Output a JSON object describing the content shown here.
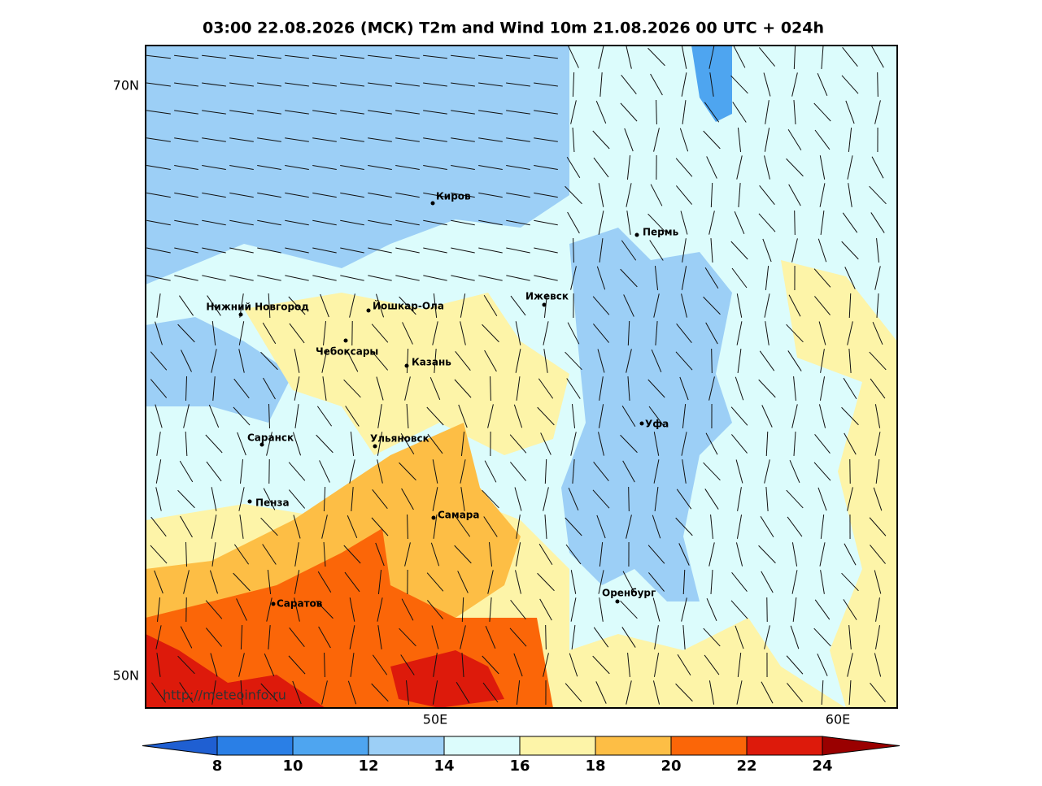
{
  "header": {
    "title": "03:00 22.08.2026 (МСК) T2m and Wind 10m 21.08.2026 00 UTC + 024h"
  },
  "map": {
    "lat_labels": [
      "70N",
      "50N"
    ],
    "lon_labels": [
      "50E",
      "60E"
    ],
    "cities": [
      "Киров",
      "Пермь",
      "Нижний Новгород",
      "Йошкар-Ола",
      "Ижевск",
      "Чебоксары",
      "Казань",
      "Уфа",
      "Саранск",
      "Ульяновск",
      "Пенза",
      "Самара",
      "Оренбург",
      "Саратов"
    ],
    "watermark": "http://meteoinfo.ru"
  },
  "colorbar": {
    "ticks": [
      8,
      10,
      12,
      14,
      16,
      18,
      20,
      22,
      24
    ],
    "colors": [
      "#1f5fd2",
      "#2a7fe6",
      "#4ea5f0",
      "#9ccff6",
      "#dcfcfc",
      "#fdf4a8",
      "#fdbe45",
      "#fb6608",
      "#dd1a0b",
      "#9a0000"
    ]
  }
}
